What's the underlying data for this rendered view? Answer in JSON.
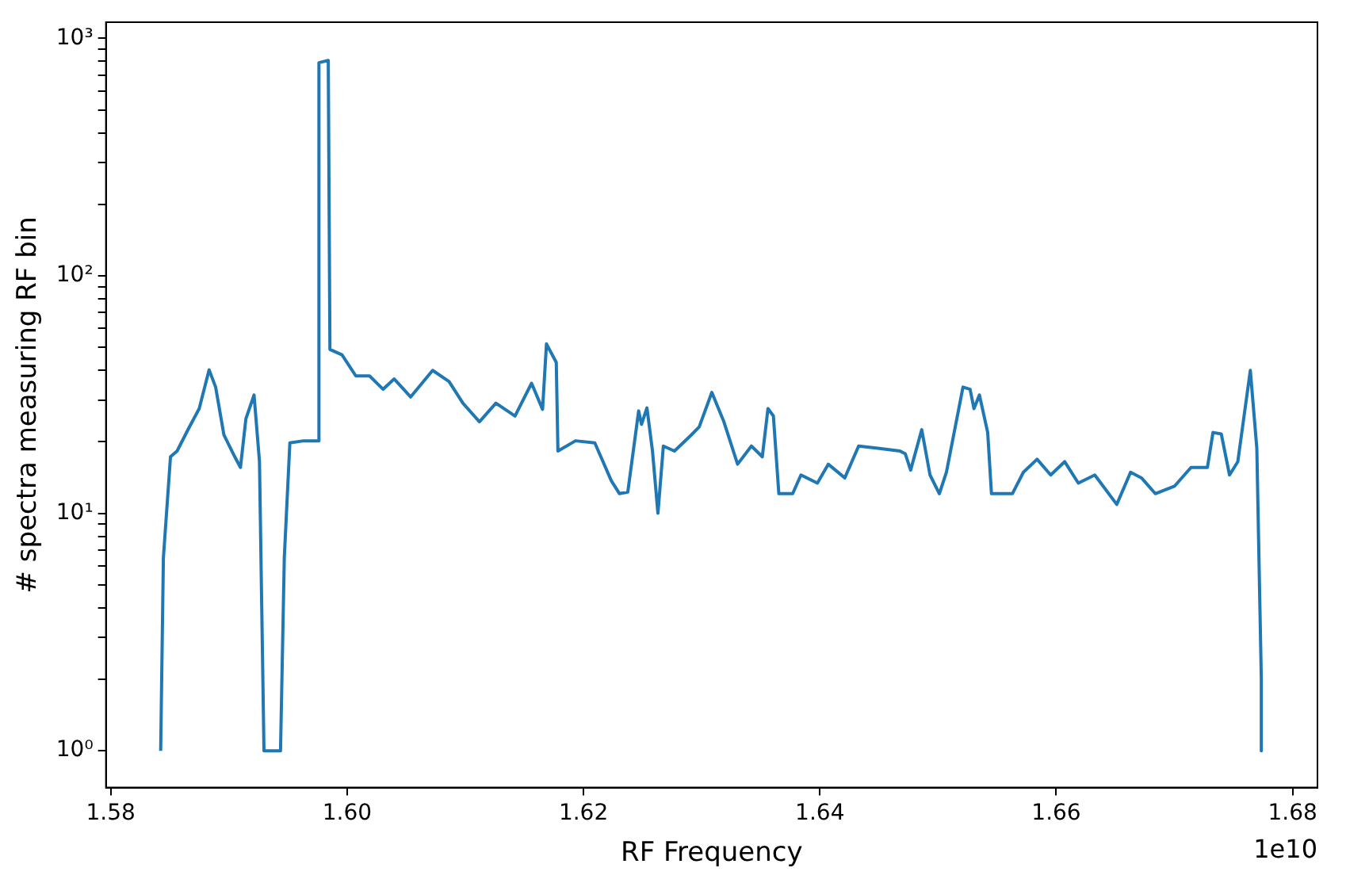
{
  "chart_data": {
    "type": "line",
    "xlabel": "RF Frequency",
    "ylabel": "# spectra measuring RF bin",
    "annotations": [
      "1e10"
    ],
    "log": "y",
    "grid": false,
    "legend": false,
    "marker": "none",
    "line_style": "solid",
    "xlim": [
      1.5796,
      1.6821
    ],
    "ylim": [
      0.7,
      1170
    ],
    "xticks": [
      1.58,
      {
        "value": 1.6,
        "label": "1.60"
      },
      1.62,
      1.64,
      1.66,
      1.68
    ],
    "yticks": [
      {
        "value": 1,
        "label": "10⁰"
      },
      {
        "value": 2,
        "label": null
      },
      {
        "value": 3,
        "label": null
      },
      {
        "value": 4,
        "label": null
      },
      {
        "value": 5,
        "label": null
      },
      {
        "value": 6,
        "label": null
      },
      {
        "value": 7,
        "label": null
      },
      {
        "value": 8,
        "label": null
      },
      {
        "value": 9,
        "label": null
      },
      {
        "value": 10,
        "label": "10¹"
      },
      {
        "value": 20,
        "label": null
      },
      {
        "value": 30,
        "label": null
      },
      {
        "value": 40,
        "label": null
      },
      {
        "value": 50,
        "label": null
      },
      {
        "value": 60,
        "label": null
      },
      {
        "value": 70,
        "label": null
      },
      {
        "value": 80,
        "label": null
      },
      {
        "value": 90,
        "label": null
      },
      {
        "value": 100,
        "label": "10²"
      },
      {
        "value": 200,
        "label": null
      },
      {
        "value": 300,
        "label": null
      },
      {
        "value": 400,
        "label": null
      },
      {
        "value": 500,
        "label": null
      },
      {
        "value": 600,
        "label": null
      },
      {
        "value": 700,
        "label": null
      },
      {
        "value": 800,
        "label": null
      },
      {
        "value": 900,
        "label": null
      },
      {
        "value": 1000,
        "label": "10³"
      }
    ],
    "series": [
      {
        "color": "#1f77b4",
        "x": [
          1.58423,
          1.58446,
          1.58506,
          1.58562,
          1.58656,
          1.58749,
          1.58833,
          1.58888,
          1.58958,
          1.5905,
          1.59098,
          1.59144,
          1.59213,
          1.59259,
          1.59297,
          1.59437,
          1.59469,
          1.59516,
          1.59632,
          1.59762,
          1.59762,
          1.59841,
          1.59855,
          1.59957,
          1.60074,
          1.6019,
          1.60305,
          1.60399,
          1.60538,
          1.60724,
          1.60863,
          1.6098,
          1.6112,
          1.61259,
          1.61421,
          1.61561,
          1.61654,
          1.61687,
          1.6177,
          1.61784,
          1.61933,
          1.62096,
          1.62236,
          1.62305,
          1.62375,
          1.62467,
          1.62491,
          1.62537,
          1.62584,
          1.6263,
          1.62676,
          1.6277,
          1.62909,
          1.62979,
          1.63086,
          1.63188,
          1.63304,
          1.63421,
          1.63513,
          1.63561,
          1.63607,
          1.63653,
          1.6377,
          1.6384,
          1.63979,
          1.64071,
          1.64211,
          1.64328,
          1.6449,
          1.64677,
          1.64723,
          1.64768,
          1.64862,
          1.64932,
          1.65011,
          1.65071,
          1.65211,
          1.65271,
          1.65304,
          1.6535,
          1.6542,
          1.65452,
          1.65629,
          1.65722,
          1.65838,
          1.65953,
          1.66071,
          1.66187,
          1.66326,
          1.66512,
          1.66629,
          1.66721,
          1.66838,
          1.67,
          1.6714,
          1.67279,
          1.67326,
          1.67396,
          1.67466,
          1.67536,
          1.67642,
          1.67697,
          1.67735,
          1.67735
        ],
        "values": [
          1,
          6.5,
          17.3,
          18.3,
          22.6,
          27.6,
          40.2,
          34,
          21.4,
          17.3,
          15.6,
          25,
          31.5,
          16.5,
          1,
          1,
          6.5,
          19.8,
          20.2,
          20.2,
          790,
          808,
          49,
          46.5,
          37.9,
          37.9,
          33.3,
          36.8,
          30.9,
          40,
          35.9,
          29.1,
          24.3,
          29.1,
          25.7,
          35.3,
          27.4,
          51.7,
          43.2,
          18.3,
          20.2,
          19.8,
          13.7,
          12.1,
          12.3,
          27,
          23.7,
          27.8,
          18.3,
          10,
          19.2,
          18.3,
          21.3,
          23.1,
          32.3,
          24.3,
          16.1,
          19.2,
          17.3,
          27.6,
          25.7,
          12.1,
          12.1,
          14.5,
          13.4,
          16.1,
          14.1,
          19.2,
          18.8,
          18.3,
          17.8,
          15.2,
          22.5,
          14.5,
          12.1,
          14.9,
          34,
          33.3,
          27.6,
          31.5,
          21.9,
          12.1,
          12.1,
          14.9,
          16.9,
          14.5,
          16.5,
          13.4,
          14.5,
          10.9,
          14.9,
          14.1,
          12.1,
          13,
          15.6,
          15.6,
          21.9,
          21.6,
          14.5,
          16.5,
          40,
          18.8,
          2,
          1
        ]
      }
    ]
  }
}
